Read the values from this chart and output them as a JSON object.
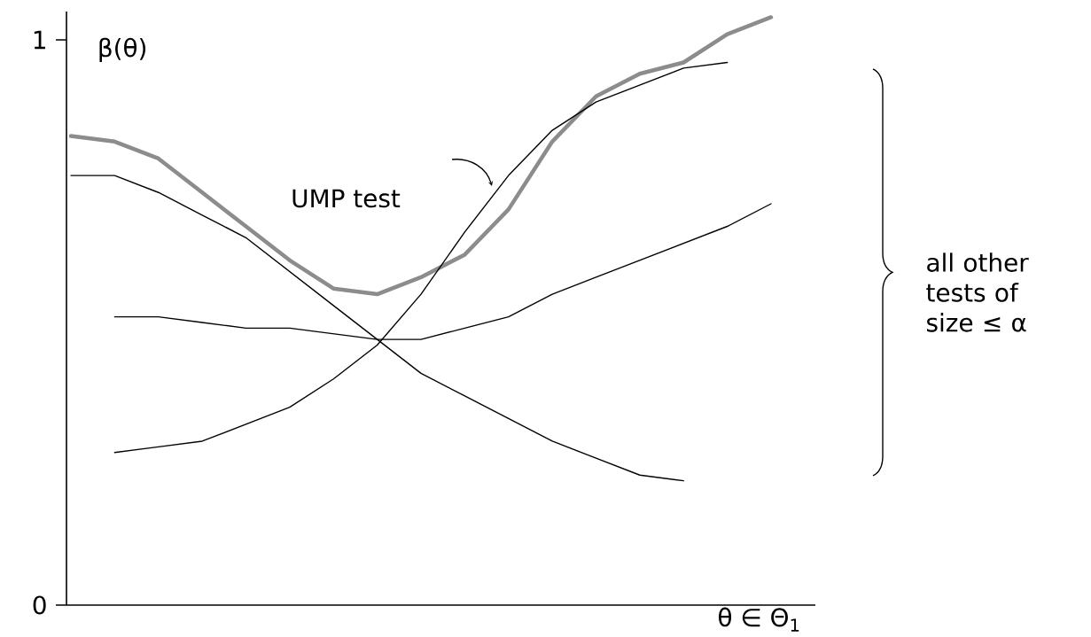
{
  "chart_data": {
    "type": "line",
    "ylabel": "β(θ)",
    "xlabel": "θ ∈ Θ$_{1}$",
    "categories": [
      null,
      null,
      null,
      null,
      null,
      null,
      null,
      null,
      null,
      null,
      null,
      null,
      null,
      null,
      null,
      null,
      null
    ],
    "series": [
      {
        "name": "UMP test",
        "color": "#8c8c8c",
        "values": [
          0.83,
          0.82,
          0.79,
          0.73,
          0.67,
          0.61,
          0.56,
          0.55,
          0.58,
          0.62,
          0.7,
          0.82,
          0.9,
          0.94,
          0.96,
          1.01,
          1.04
        ]
      },
      {
        "color": "#000000",
        "values": [
          0.76,
          0.76,
          0.73,
          0.69,
          0.65,
          0.59,
          0.53,
          0.47,
          0.41,
          0.37,
          0.33,
          0.29,
          0.26,
          0.23,
          0.22,
          null,
          null
        ]
      },
      {
        "color": "#000000",
        "values": [
          null,
          0.51,
          0.51,
          0.5,
          0.49,
          0.49,
          0.48,
          0.47,
          0.47,
          0.49,
          0.51,
          0.55,
          0.58,
          0.61,
          0.64,
          0.67,
          0.71
        ]
      },
      {
        "color": "#000000",
        "values": [
          null,
          0.27,
          0.28,
          0.29,
          0.32,
          0.35,
          0.4,
          0.46,
          0.55,
          0.66,
          0.76,
          0.84,
          0.89,
          0.92,
          0.95,
          0.96,
          null
        ]
      }
    ],
    "ylim": [
      0,
      1.05
    ],
    "yticks": [
      0,
      1
    ],
    "annotations": [
      "all other tests of size ≤ α"
    ],
    "tick_labels": "y",
    "grid": false,
    "marker": "none",
    "line_style": "solid"
  }
}
